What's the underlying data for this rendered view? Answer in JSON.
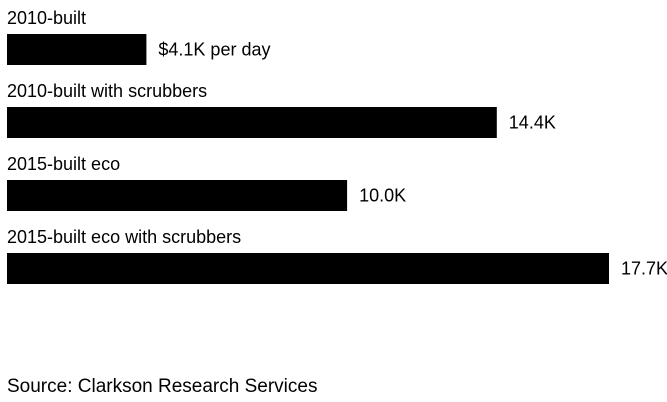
{
  "chart_data": {
    "type": "bar",
    "orientation": "horizontal",
    "categories": [
      "2010-built",
      "2010-built with scrubbers",
      "2015-built eco",
      "2015-built eco with scrubbers"
    ],
    "values": [
      4.1,
      14.4,
      10.0,
      17.7
    ],
    "value_labels": [
      "$4.1K per day",
      "14.4K",
      "10.0K",
      "17.7K"
    ],
    "unit": "K per day",
    "bar_color": "#000000",
    "title": "",
    "xlabel": "",
    "ylabel": "",
    "grid": false,
    "legend": "none"
  },
  "source": "Source: Clarkson Research Services"
}
